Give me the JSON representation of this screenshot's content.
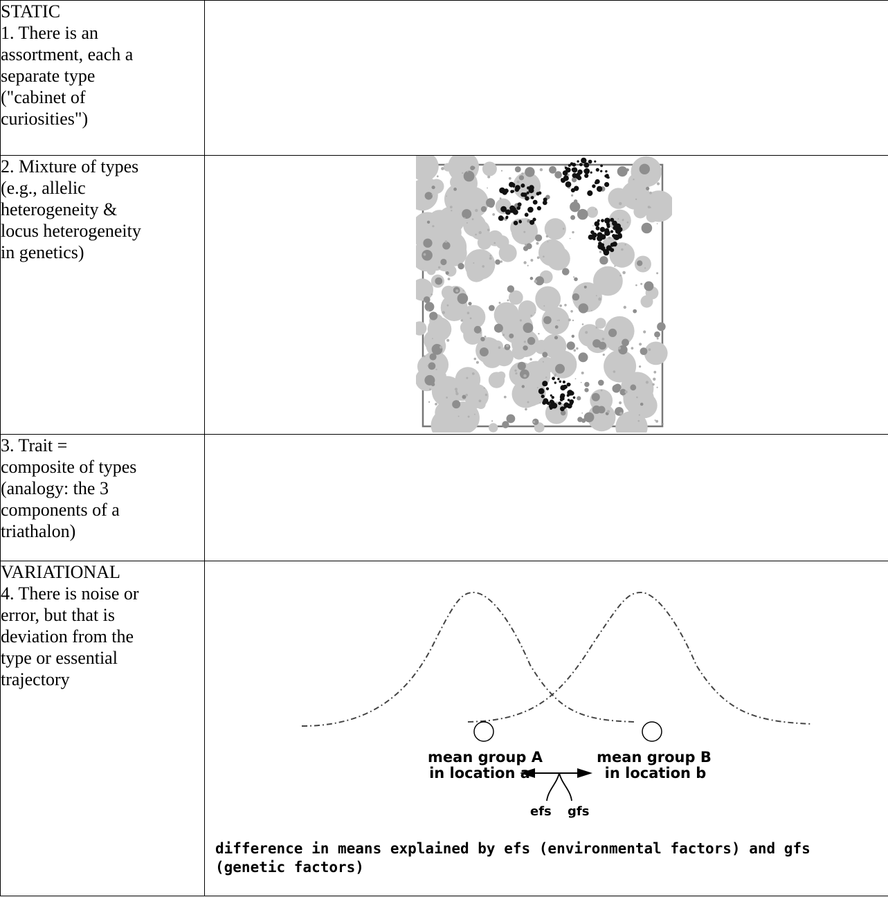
{
  "rows": [
    {
      "left_lines": [
        "STATIC",
        "1. There is an",
        "assortment, each a",
        "separate type",
        "(\"cabinet of",
        "curiosities\")"
      ]
    },
    {
      "left_lines": [
        "2. Mixture of types",
        "(e.g., allelic",
        "heterogeneity &",
        "locus heterogeneity",
        "in genetics)"
      ]
    },
    {
      "left_lines": [
        "3. Trait =",
        "composite of types",
        "(analogy: the 3",
        "components of a",
        "triathalon)"
      ]
    },
    {
      "left_lines": [
        "VARIATIONAL",
        "4. There is noise or",
        "error, but that is",
        "deviation from the",
        "type or essential",
        "trajectory"
      ]
    }
  ],
  "scatter_figure": {
    "colors": {
      "light": "#c8c8c8",
      "mid": "#8e8e8e",
      "dark": "#111111",
      "frame": "#777777"
    }
  },
  "distribution_figure": {
    "label_a_line1": "mean group A",
    "label_a_line2": "in location a",
    "label_b_line1": "mean group B",
    "label_b_line2": "in location b",
    "efs_label": "efs",
    "gfs_label": "gfs",
    "caption": "difference in means explained by efs (environmental factors) and gfs (genetic factors)"
  }
}
